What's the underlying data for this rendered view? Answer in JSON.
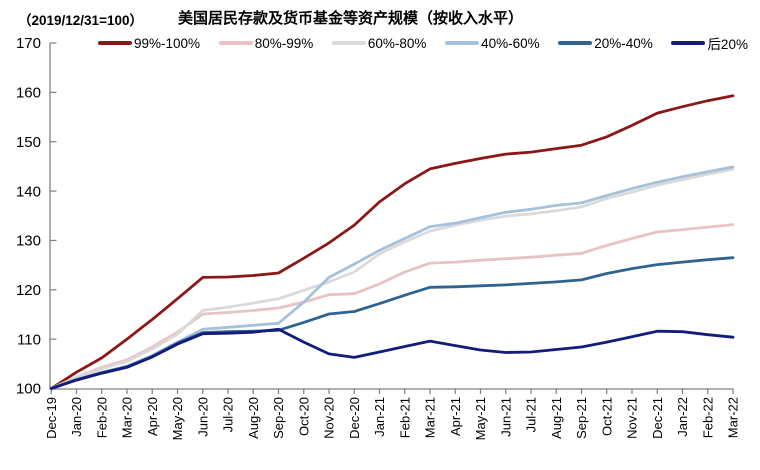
{
  "header": {
    "index_note": "（2019/12/31=100）",
    "title": "美国居民存款及货币基金等资产规模（按收入水平）"
  },
  "chart_data": {
    "type": "line",
    "title": "美国居民存款及货币基金等资产规模（按收入水平）",
    "index_note": "（2019/12/31=100）",
    "legend_position": "top",
    "grid": false,
    "axis_color": "#7f7f7f",
    "text_color": "#000000",
    "ylim": [
      100,
      170
    ],
    "yticks": [
      100,
      110,
      120,
      130,
      140,
      150,
      160,
      170
    ],
    "x": [
      "Dec-19",
      "Jan-20",
      "Feb-20",
      "Mar-20",
      "Apr-20",
      "May-20",
      "Jun-20",
      "Jul-20",
      "Aug-20",
      "Sep-20",
      "Oct-20",
      "Nov-20",
      "Dec-20",
      "Jan-21",
      "Feb-21",
      "Mar-21",
      "Apr-21",
      "May-21",
      "Jun-21",
      "Jul-21",
      "Aug-21",
      "Sep-21",
      "Oct-21",
      "Nov-21",
      "Dec-21",
      "Jan-22",
      "Feb-22",
      "Mar-22"
    ],
    "series": [
      {
        "name": "99%-100%",
        "color": "#8B1717",
        "values": [
          100,
          103.3,
          106.2,
          110,
          114,
          118.2,
          122.5,
          122.6,
          122.9,
          123.4,
          126.4,
          129.5,
          133.1,
          137.8,
          141.5,
          144.5,
          145.6,
          146.6,
          147.5,
          147.9,
          148.6,
          149.3,
          151,
          153.3,
          155.8,
          157.1,
          158.3,
          159.3
        ]
      },
      {
        "name": "80%-99%",
        "color": "#E8C2C4",
        "values": [
          100,
          102.3,
          104.3,
          105.8,
          108.4,
          111.4,
          115.1,
          115.4,
          115.8,
          116.3,
          117.5,
          119,
          119.2,
          121.2,
          123.6,
          125.4,
          125.6,
          126,
          126.3,
          126.6,
          127,
          127.4,
          129,
          130.4,
          131.7,
          132.2,
          132.7,
          133.2
        ]
      },
      {
        "name": "60%-80%",
        "color": "#DADADA",
        "values": [
          100,
          102.2,
          104,
          105.5,
          108,
          111,
          115.8,
          116.5,
          117.3,
          118.2,
          119.9,
          121.6,
          123.6,
          127.3,
          129.7,
          131.9,
          133.1,
          134.1,
          134.9,
          135.4,
          136,
          136.8,
          138.5,
          139.8,
          141.2,
          142.3,
          143.4,
          144.4
        ]
      },
      {
        "name": "40%-60%",
        "color": "#A6C1DC",
        "values": [
          100,
          101.8,
          103.3,
          104.5,
          106.7,
          109.4,
          112,
          112.4,
          112.8,
          113.2,
          117.5,
          122.5,
          125.2,
          128,
          130.4,
          132.8,
          133.5,
          134.6,
          135.7,
          136.3,
          137.1,
          137.6,
          139.1,
          140.5,
          141.8,
          142.9,
          143.9,
          144.9
        ]
      },
      {
        "name": "20%-40%",
        "color": "#2F6390",
        "values": [
          100,
          101.8,
          103.2,
          104.4,
          106.5,
          109.2,
          111.3,
          111.5,
          111.6,
          111.8,
          113.4,
          115.1,
          115.6,
          117.2,
          118.9,
          120.5,
          120.6,
          120.8,
          121,
          121.3,
          121.6,
          122,
          123.3,
          124.3,
          125.1,
          125.6,
          126.1,
          126.5
        ]
      },
      {
        "name": "后20%",
        "color": "#131C7C",
        "values": [
          100,
          101.7,
          103.1,
          104.3,
          106.4,
          109,
          111.1,
          111.2,
          111.4,
          112,
          109.4,
          107,
          106.3,
          107.4,
          108.5,
          109.6,
          108.7,
          107.8,
          107.3,
          107.4,
          107.9,
          108.4,
          109.4,
          110.5,
          111.6,
          111.5,
          110.9,
          110.4
        ]
      }
    ]
  }
}
